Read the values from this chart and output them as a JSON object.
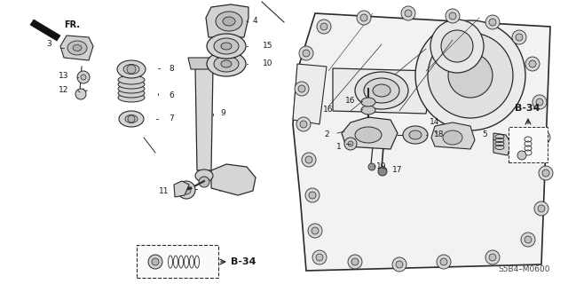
{
  "bg_color": "#ffffff",
  "diagram_code": "S5B4–M0600",
  "b34_label": "B-34",
  "fr_label": "FR.",
  "line_color": "#2a2a2a",
  "text_color": "#1a1a1a",
  "font_size_labels": 6.5,
  "figsize": [
    6.4,
    3.2
  ],
  "dpi": 100
}
